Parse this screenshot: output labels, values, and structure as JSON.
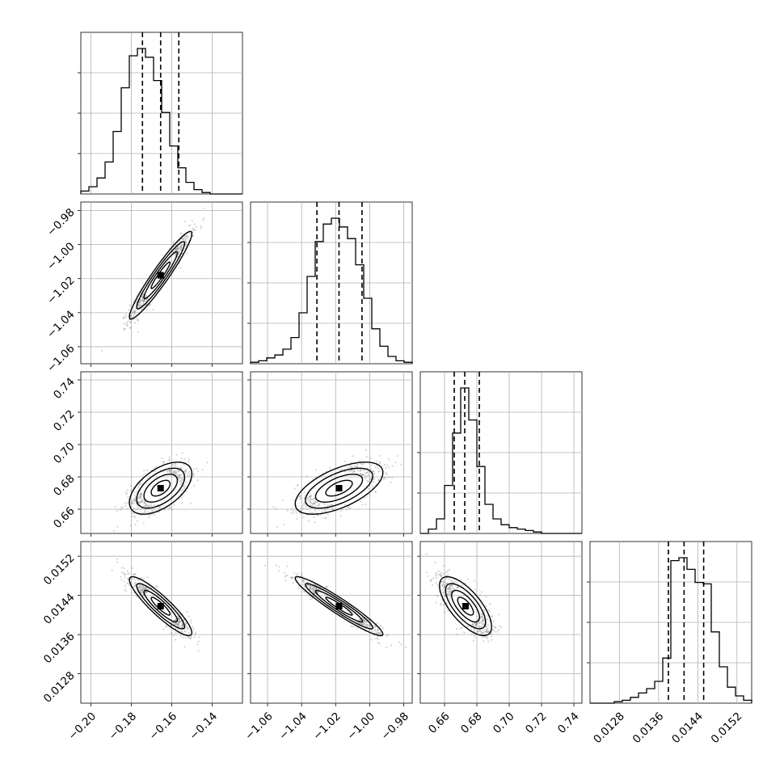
{
  "chart_data": {
    "type": "scatter",
    "grid": true,
    "parameters": [
      {
        "index": 0,
        "range": [
          -0.205,
          -0.125
        ],
        "ticks": [
          "-0.20",
          "-0.18",
          "-0.16",
          "-0.14"
        ],
        "tick_values": [
          -0.2,
          -0.18,
          -0.16,
          -0.14
        ],
        "mean": -0.1655,
        "sd": 0.0072,
        "quantiles": [
          -0.1745,
          -0.1655,
          -0.1565
        ],
        "hist": [
          0.02,
          0.05,
          0.11,
          0.22,
          0.43,
          0.73,
          0.95,
          1.0,
          0.94,
          0.78,
          0.56,
          0.33,
          0.18,
          0.08,
          0.03,
          0.01,
          0.0,
          0.0,
          0.0,
          0.0
        ]
      },
      {
        "index": 1,
        "range": [
          -1.07,
          -0.975
        ],
        "ticks": [
          "-1.06",
          "-1.04",
          "-1.02",
          "-1.00",
          "-0.98"
        ],
        "tick_values": [
          -1.06,
          -1.04,
          -1.02,
          -1.0,
          -0.98
        ],
        "mean": -1.018,
        "sd": 0.012,
        "quantiles": [
          -1.031,
          -1.018,
          -1.0045
        ],
        "hist": [
          0.01,
          0.02,
          0.04,
          0.06,
          0.1,
          0.18,
          0.35,
          0.6,
          0.84,
          0.96,
          1.0,
          0.94,
          0.86,
          0.68,
          0.45,
          0.24,
          0.12,
          0.05,
          0.02,
          0.01
        ]
      },
      {
        "index": 2,
        "range": [
          0.645,
          0.745
        ],
        "ticks": [
          "0.66",
          "0.68",
          "0.70",
          "0.72",
          "0.74"
        ],
        "tick_values": [
          0.66,
          0.68,
          0.7,
          0.72,
          0.74
        ],
        "mean": 0.673,
        "sd": 0.0075,
        "quantiles": [
          0.666,
          0.6725,
          0.6815
        ],
        "hist": [
          0.0,
          0.03,
          0.1,
          0.33,
          0.69,
          1.0,
          0.78,
          0.46,
          0.2,
          0.1,
          0.06,
          0.04,
          0.03,
          0.02,
          0.01,
          0.0,
          0.0,
          0.0,
          0.0,
          0.0
        ]
      },
      {
        "index": 3,
        "range": [
          0.0122,
          0.0155
        ],
        "ticks": [
          "0.0128",
          "0.0136",
          "0.0144",
          "0.0152"
        ],
        "tick_values": [
          0.0128,
          0.0136,
          0.0144,
          0.0152
        ],
        "mean": 0.01418,
        "sd": 0.00028,
        "quantiles": [
          0.0138,
          0.01412,
          0.01452
        ],
        "hist": [
          0.0,
          0.0,
          0.0,
          0.01,
          0.02,
          0.04,
          0.07,
          0.1,
          0.15,
          0.31,
          0.98,
          1.0,
          0.92,
          0.83,
          0.82,
          0.49,
          0.25,
          0.11,
          0.05,
          0.02
        ]
      }
    ],
    "correlations": {
      "1-0": 0.95,
      "2-0": 0.55,
      "2-1": 0.6,
      "3-0": -0.9,
      "3-1": -0.95,
      "3-2": -0.7
    }
  }
}
